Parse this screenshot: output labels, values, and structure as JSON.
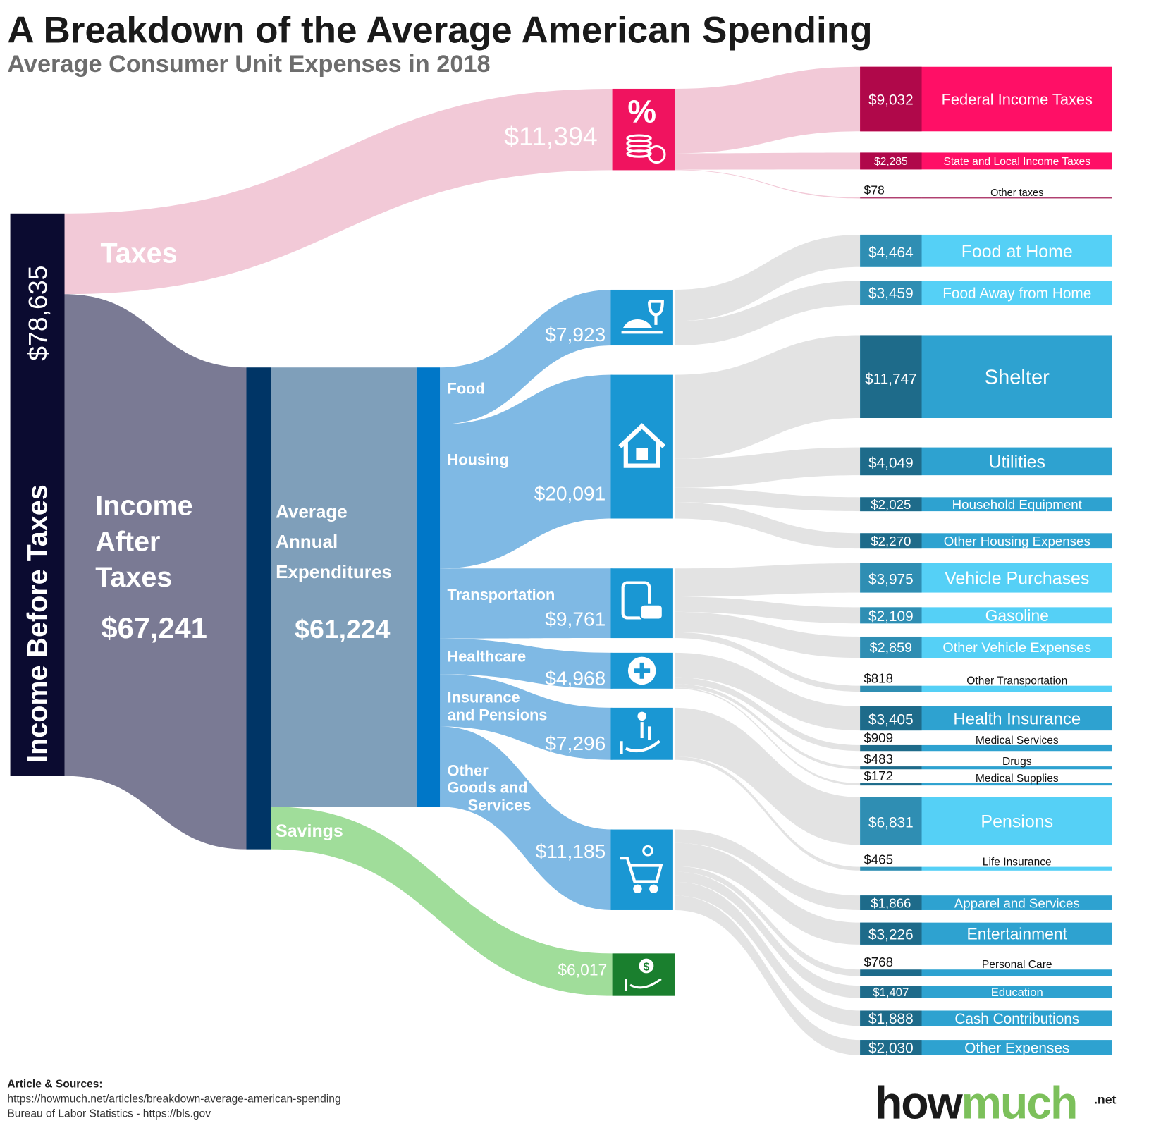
{
  "title": "A Breakdown of the Average American Spending",
  "subtitle": "Average Consumer Unit Expenses in 2018",
  "colors": {
    "income_bar": "#0b0b30",
    "taxes_flow": "#f2c9d7",
    "taxes_icon": "#f0135f",
    "tax_box": "#ff0f66",
    "tax_box_value": "#b0084a",
    "after_tax_flow": "#7a7a94",
    "expenditure_block": "#7f9fba",
    "navy_bar": "#003566",
    "blue_bar": "#0077c8",
    "category_flow": "#7fb9e4",
    "category_icon": "#1a97d3",
    "detail_flow": "#e3e3e3",
    "light_box": "#55d0f6",
    "light_box_value": "#2f8eb3",
    "mid_box": "#2ea2d0",
    "mid_box_value": "#1e6b8a",
    "savings_flow": "#a0dd9a",
    "savings_icon": "#1a7f2e",
    "logo_green": "#7cc05b"
  },
  "chart_data": {
    "type": "sankey",
    "title": "A Breakdown of the Average American Spending",
    "subtitle": "Average Consumer Unit Expenses in 2018",
    "income_before_taxes": {
      "label": "Income Before Taxes",
      "value": "$78,635"
    },
    "taxes": {
      "label": "Taxes",
      "value": "$11,394",
      "icon": "percent-coins-icon",
      "items": [
        {
          "value": "$9,032",
          "label": "Federal Income Taxes"
        },
        {
          "value": "$2,285",
          "label": "State and Local Income Taxes"
        },
        {
          "value": "$78",
          "label": "Other taxes"
        }
      ]
    },
    "income_after_taxes": {
      "label_lines": [
        "Income",
        "After",
        "Taxes"
      ],
      "value": "$67,241"
    },
    "expenditures": {
      "label_lines": [
        "Average",
        "Annual",
        "Expenditures"
      ],
      "value": "$61,224"
    },
    "savings": {
      "label": "Savings",
      "value": "$6,017",
      "icon": "dollar-hand-icon"
    },
    "categories": [
      {
        "label_lines": [
          "Food"
        ],
        "value": "$7,923",
        "amount": 7923,
        "icon": "dining-icon",
        "items": [
          {
            "value": "$4,464",
            "label": "Food at Home",
            "amount": 4464
          },
          {
            "value": "$3,459",
            "label": "Food Away from Home",
            "amount": 3459
          }
        ]
      },
      {
        "label_lines": [
          "Housing"
        ],
        "value": "$20,091",
        "amount": 20091,
        "icon": "house-icon",
        "items": [
          {
            "value": "$11,747",
            "label": "Shelter",
            "amount": 11747
          },
          {
            "value": "$4,049",
            "label": "Utilities",
            "amount": 4049
          },
          {
            "value": "$2,025",
            "label": "Household Equipment",
            "amount": 2025
          },
          {
            "value": "$2,270",
            "label": "Other Housing Expenses",
            "amount": 2270
          }
        ]
      },
      {
        "label_lines": [
          "Transportation"
        ],
        "value": "$9,761",
        "amount": 9761,
        "icon": "bus-car-icon",
        "items": [
          {
            "value": "$3,975",
            "label": "Vehicle Purchases",
            "amount": 3975
          },
          {
            "value": "$2,109",
            "label": "Gasoline",
            "amount": 2109
          },
          {
            "value": "$2,859",
            "label": "Other Vehicle Expenses",
            "amount": 2859
          },
          {
            "value": "$818",
            "label": "Other Transportation",
            "amount": 818
          }
        ]
      },
      {
        "label_lines": [
          "Healthcare"
        ],
        "value": "$4,968",
        "amount": 4968,
        "icon": "medical-cross-icon",
        "items": [
          {
            "value": "$3,405",
            "label": "Health Insurance",
            "amount": 3405
          },
          {
            "value": "$909",
            "label": "Medical Services",
            "amount": 909
          },
          {
            "value": "$483",
            "label": "Drugs",
            "amount": 483
          },
          {
            "value": "$172",
            "label": "Medical Supplies",
            "amount": 172
          }
        ]
      },
      {
        "label_lines": [
          "Insurance",
          "and Pensions"
        ],
        "value": "$7,296",
        "amount": 7296,
        "icon": "elderly-hand-icon",
        "items": [
          {
            "value": "$6,831",
            "label": "Pensions",
            "amount": 6831
          },
          {
            "value": "$465",
            "label": "Life Insurance",
            "amount": 465
          }
        ]
      },
      {
        "label_lines": [
          "Other",
          "Goods and",
          "Services"
        ],
        "value": "$11,185",
        "amount": 11185,
        "icon": "shopping-cart-icon",
        "items": [
          {
            "value": "$1,866",
            "label": "Apparel and Services",
            "amount": 1866
          },
          {
            "value": "$3,226",
            "label": "Entertainment",
            "amount": 3226
          },
          {
            "value": "$768",
            "label": "Personal Care",
            "amount": 768
          },
          {
            "value": "$1,407",
            "label": "Education",
            "amount": 1407
          },
          {
            "value": "$1,888",
            "label": "Cash Contributions",
            "amount": 1888
          },
          {
            "value": "$2,030",
            "label": "Other Expenses",
            "amount": 2030
          }
        ]
      }
    ]
  },
  "footer": {
    "heading": "Article & Sources:",
    "lines": [
      "https://howmuch.net/articles/breakdown-average-american-spending",
      "Bureau of Labor Statistics - https://bls.gov"
    ]
  },
  "logo": {
    "part1": "how",
    "part2": "much",
    "suffix": ".net"
  }
}
